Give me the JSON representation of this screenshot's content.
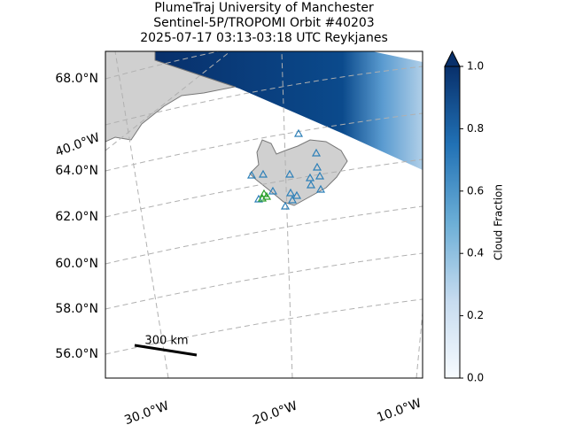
{
  "title": [
    "PlumeTraj    University of Manchester",
    "Sentinel-5P/TROPOMI Orbit #40203",
    "2025-07-17   03:13-03:18 UTC   Reykjanes"
  ],
  "latitude_labels": [
    "68.0°N",
    "64.0°N",
    "62.0°N",
    "60.0°N",
    "58.0°N",
    "56.0°N"
  ],
  "longitude_labels": [
    "40.0°W",
    "30.0°W",
    "20.0°W",
    "10.0°W"
  ],
  "scale_bar": "300 km",
  "colorbar": {
    "label": "Cloud Fraction",
    "lim": [
      0,
      1
    ],
    "ticks": [
      {
        "value": 0,
        "label": "0.0"
      },
      {
        "value": 0.2,
        "label": "0.2"
      },
      {
        "value": 0.4,
        "label": "0.4"
      },
      {
        "value": 0.6,
        "label": "0.6"
      },
      {
        "value": 0.8,
        "label": "0.8"
      },
      {
        "value": 1,
        "label": "1.0"
      }
    ]
  }
}
